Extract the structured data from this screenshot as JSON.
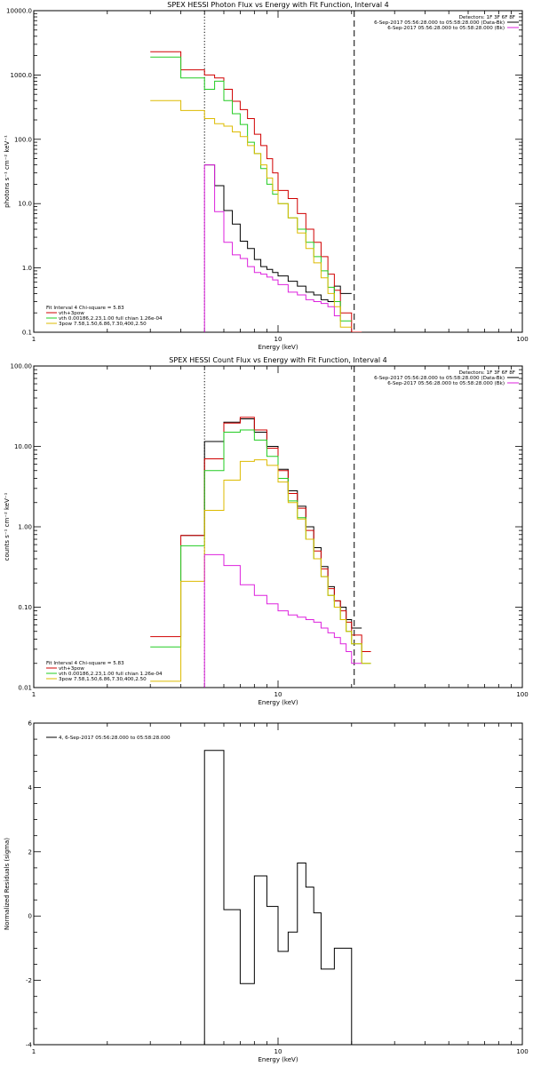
{
  "chart_data": [
    {
      "type": "line",
      "title": "SPEX HESSI Photon Flux vs Energy with Fit Function, Interval 4",
      "xlabel": "Energy (keV)",
      "ylabel": "photons s⁻¹ cm⁻² keV⁻¹",
      "xscale": "log",
      "yscale": "log",
      "xlim": [
        1,
        100
      ],
      "ylim": [
        0.1,
        10000
      ],
      "xticks": [
        {
          "v": 1,
          "label": "1"
        },
        {
          "v": 10,
          "label": "10"
        },
        {
          "v": 100,
          "label": "100"
        }
      ],
      "yticks": [
        {
          "v": 0.1,
          "label": "0.1"
        },
        {
          "v": 1,
          "label": "1.0"
        },
        {
          "v": 10,
          "label": "10.0"
        },
        {
          "v": 100,
          "label": "100.0"
        },
        {
          "v": 1000,
          "label": "1000.0"
        },
        {
          "v": 10000,
          "label": "10000.0"
        }
      ],
      "vlines": [
        {
          "x": 5.0,
          "style": "dotted"
        },
        {
          "x": 20.5,
          "style": "dashed"
        }
      ],
      "edges": [
        3.0,
        4.0,
        5.0,
        5.5,
        6.0,
        6.5,
        7.0,
        7.5,
        8.0,
        8.5,
        9.0,
        9.5,
        10.0,
        11.0,
        12.0,
        13.0,
        14.0,
        15.0,
        16.0,
        17.0,
        18.0,
        20.0,
        22.0,
        24.0
      ],
      "series": [
        {
          "name": "",
          "color": "#000000",
          "values": [
            null,
            null,
            40,
            19,
            7.8,
            4.8,
            2.6,
            2.0,
            1.35,
            1.05,
            0.95,
            0.85,
            0.75,
            0.62,
            0.52,
            0.42,
            0.38,
            0.32,
            0.3,
            0.52,
            0.4,
            null,
            null
          ]
        },
        {
          "name": "vth+3pow",
          "color": "#d00000",
          "values": [
            2300,
            1200,
            1000,
            900,
            600,
            390,
            290,
            210,
            120,
            80,
            50,
            30,
            16,
            12,
            7,
            4,
            2.5,
            1.5,
            0.8,
            0.45,
            0.2,
            0.1,
            null
          ]
        },
        {
          "name": "vth 0.00186,2.23,1.00 full chian 1.26e-04",
          "color": "#22cc22",
          "values": [
            1900,
            900,
            600,
            800,
            400,
            250,
            170,
            90,
            60,
            35,
            20,
            14,
            10,
            6,
            4,
            2.5,
            1.5,
            0.9,
            0.5,
            0.3,
            0.15,
            null,
            null
          ]
        },
        {
          "name": "3pow 7.58,1.50,6.86,7.30,400,2.50",
          "color": "#ddbb00",
          "values": [
            400,
            280,
            210,
            175,
            160,
            130,
            110,
            80,
            60,
            40,
            25,
            16,
            10,
            6,
            3.5,
            2.0,
            1.2,
            0.7,
            0.4,
            0.25,
            0.12,
            null,
            null
          ]
        },
        {
          "name": "",
          "color": "#dd22dd",
          "values": [
            null,
            null,
            40,
            7.5,
            2.5,
            1.6,
            1.4,
            1.05,
            0.85,
            0.8,
            0.72,
            0.65,
            0.55,
            0.42,
            0.38,
            0.32,
            0.3,
            0.28,
            0.25,
            0.18,
            null,
            null,
            null
          ]
        }
      ],
      "magenta_drop_x": 5.0,
      "detectors": "Detectors: 1F 3F 6F 8F",
      "legend_right": [
        {
          "text": "6-Sep-2017 05:56:28.000 to 05:58:28.000 (Data-Bk)",
          "color": "#000000"
        },
        {
          "text": "6-Sep-2017 05:56:28.000 to 05:58:28.000 (Bk)",
          "color": "#dd22dd"
        }
      ],
      "legend_left": [
        {
          "text": "Fit Interval  4   Chi-square = 5.83",
          "color": null
        },
        {
          "text": "vth+3pow",
          "color": "#d00000"
        },
        {
          "text": "vth 0.00186,2.23,1.00  full chian 1.26e-04",
          "color": "#22cc22"
        },
        {
          "text": "3pow 7.58,1.50,6.86,7.30,400,2.50",
          "color": "#ddbb00"
        }
      ]
    },
    {
      "type": "line",
      "title": "SPEX HESSI Count Flux vs Energy with Fit Function, Interval 4",
      "xlabel": "Energy (keV)",
      "ylabel": "counts s⁻¹ cm⁻² keV⁻¹",
      "xscale": "log",
      "yscale": "log",
      "xlim": [
        1,
        100
      ],
      "ylim": [
        0.01,
        100
      ],
      "xticks": [
        {
          "v": 1,
          "label": "1"
        },
        {
          "v": 10,
          "label": "10"
        },
        {
          "v": 100,
          "label": "100"
        }
      ],
      "yticks": [
        {
          "v": 0.01,
          "label": "0.01"
        },
        {
          "v": 0.1,
          "label": "0.10"
        },
        {
          "v": 1,
          "label": "1.00"
        },
        {
          "v": 10,
          "label": "10.00"
        },
        {
          "v": 100,
          "label": "100.00"
        }
      ],
      "vlines": [
        {
          "x": 5.0,
          "style": "dotted"
        },
        {
          "x": 20.5,
          "style": "dashed"
        }
      ],
      "edges": [
        3.0,
        4.0,
        5.0,
        6.0,
        7.0,
        8.0,
        9.0,
        10.0,
        11.0,
        12.0,
        13.0,
        14.0,
        15.0,
        16.0,
        17.0,
        18.0,
        19.0,
        20.0,
        22.0,
        24.0
      ],
      "series": [
        {
          "name": "",
          "color": "#000000",
          "values": [
            null,
            0.78,
            11.5,
            20,
            22,
            15,
            10,
            5.2,
            2.8,
            1.8,
            1.0,
            0.55,
            0.32,
            0.18,
            0.12,
            0.1,
            0.07,
            0.055,
            null
          ]
        },
        {
          "name": "vth+3pow",
          "color": "#d00000",
          "values": [
            0.043,
            0.78,
            7.0,
            19.5,
            23,
            16,
            9.5,
            5.0,
            2.6,
            1.7,
            0.9,
            0.5,
            0.3,
            0.17,
            0.12,
            0.09,
            0.065,
            0.045,
            0.028
          ]
        },
        {
          "name": "vth 0.00186,2.23,1.00 full chian 1.26e-04",
          "color": "#22cc22",
          "values": [
            0.032,
            0.58,
            5.0,
            15,
            16,
            12,
            7.5,
            4.0,
            2.1,
            1.3,
            0.7,
            0.4,
            0.24,
            0.14,
            0.1,
            0.07,
            0.05,
            0.035,
            0.02
          ]
        },
        {
          "name": "3pow 7.58,1.50,6.86,7.30,400,2.50",
          "color": "#ddbb00",
          "values": [
            0.012,
            0.21,
            1.6,
            3.8,
            6.5,
            6.8,
            5.8,
            3.6,
            2.0,
            1.25,
            0.7,
            0.4,
            0.24,
            0.14,
            0.1,
            0.07,
            0.05,
            0.035,
            0.02
          ]
        },
        {
          "name": "",
          "color": "#dd22dd",
          "values": [
            null,
            null,
            0.45,
            0.33,
            0.19,
            0.14,
            0.11,
            0.09,
            0.08,
            0.075,
            0.07,
            0.065,
            0.055,
            0.048,
            0.042,
            0.035,
            0.028,
            0.02,
            null
          ]
        }
      ],
      "magenta_drop_x": 5.0,
      "detectors": "Detectors: 1F 3F 6F 8F",
      "legend_right": [
        {
          "text": "6-Sep-2017 05:56:28.000 to 05:58:28.000 (Data-Bk)",
          "color": "#000000"
        },
        {
          "text": "6-Sep-2017 05:56:28.000 to 05:58:28.000 (Bk)",
          "color": "#dd22dd"
        }
      ],
      "legend_left": [
        {
          "text": "Fit Interval  4   Chi-square = 5.83",
          "color": null
        },
        {
          "text": "vth+3pow",
          "color": "#d00000"
        },
        {
          "text": "vth 0.00186,2.23,1.00  full chian 1.26e-04",
          "color": "#22cc22"
        },
        {
          "text": "3pow 7.58,1.50,6.86,7.30,400,2.50",
          "color": "#ddbb00"
        }
      ]
    },
    {
      "type": "line",
      "title": "",
      "xlabel": "Energy (keV)",
      "ylabel": "Normalized Residuals (sigma)",
      "xscale": "log",
      "yscale": "linear",
      "xlim": [
        1,
        100
      ],
      "ylim": [
        -4,
        6
      ],
      "xticks": [
        {
          "v": 1,
          "label": "1"
        },
        {
          "v": 10,
          "label": "10"
        },
        {
          "v": 100,
          "label": "100"
        }
      ],
      "yticks": [
        {
          "v": -4,
          "label": "-4"
        },
        {
          "v": -2,
          "label": "-2"
        },
        {
          "v": 0,
          "label": "0"
        },
        {
          "v": 2,
          "label": "2"
        },
        {
          "v": 4,
          "label": "4"
        },
        {
          "v": 6,
          "label": "6"
        }
      ],
      "vlines": [],
      "edges": [
        5.0,
        6.0,
        7.0,
        8.0,
        9.0,
        10.0,
        11.0,
        12.0,
        13.0,
        14.0,
        15.0,
        17.0,
        18.0,
        20.0
      ],
      "series": [
        {
          "name": "",
          "color": "#000000",
          "values": [
            5.15,
            0.2,
            -2.1,
            1.25,
            0.3,
            -1.1,
            -0.5,
            1.65,
            0.9,
            0.1,
            -1.65,
            -1.0,
            -1.0
          ],
          "drop_to_bottom": true
        }
      ],
      "legend_right": [],
      "legend_left": [
        {
          "text": "4,  6-Sep-2017 05:56:28.000 to 05:58:28.000",
          "color": "#000000"
        }
      ]
    }
  ]
}
